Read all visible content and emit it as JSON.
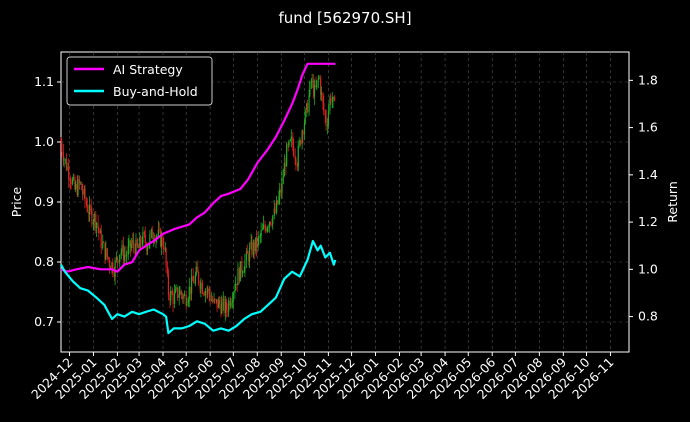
{
  "chart_data": {
    "type": "line",
    "title": "fund [562970.SH]",
    "ylabel_left": "Price",
    "ylabel_right": "Return",
    "ylim_left": [
      0.65,
      1.15
    ],
    "ylim_right": [
      0.65,
      1.92
    ],
    "yticks_left": [
      "0.7",
      "0.8",
      "0.9",
      "1.0",
      "1.1"
    ],
    "yticks_right": [
      "0.8",
      "1.0",
      "1.2",
      "1.4",
      "1.6",
      "1.8"
    ],
    "x_range": [
      "2024-11-20",
      "2026-11-25"
    ],
    "x_ticks": [
      "2024-12",
      "2025-01",
      "2025-02",
      "2025-03",
      "2025-04",
      "2025-05",
      "2025-06",
      "2025-07",
      "2025-08",
      "2025-09",
      "2025-10",
      "2025-11",
      "2025-12",
      "2026-01",
      "2026-02",
      "2026-03",
      "2026-04",
      "2026-05",
      "2026-06",
      "2026-07",
      "2026-08",
      "2026-09",
      "2026-10",
      "2026-11"
    ],
    "grid": true,
    "legend_position": "top-left",
    "background": "#000000",
    "series": [
      {
        "name": "AI Strategy",
        "axis": "right",
        "color": "#ff00ff",
        "points": [
          [
            "2024-11-20",
            1.0
          ],
          [
            "2024-11-28",
            0.99
          ],
          [
            "2024-12-10",
            1.0
          ],
          [
            "2024-12-25",
            1.01
          ],
          [
            "2025-01-10",
            1.0
          ],
          [
            "2025-01-25",
            1.0
          ],
          [
            "2025-02-01",
            0.99
          ],
          [
            "2025-02-10",
            1.02
          ],
          [
            "2025-02-20",
            1.03
          ],
          [
            "2025-03-01",
            1.08
          ],
          [
            "2025-03-10",
            1.1
          ],
          [
            "2025-03-20",
            1.12
          ],
          [
            "2025-04-01",
            1.15
          ],
          [
            "2025-04-15",
            1.17
          ],
          [
            "2025-04-25",
            1.18
          ],
          [
            "2025-05-05",
            1.19
          ],
          [
            "2025-05-15",
            1.22
          ],
          [
            "2025-05-25",
            1.24
          ],
          [
            "2025-06-05",
            1.28
          ],
          [
            "2025-06-15",
            1.31
          ],
          [
            "2025-06-25",
            1.32
          ],
          [
            "2025-07-10",
            1.34
          ],
          [
            "2025-07-20",
            1.38
          ],
          [
            "2025-08-01",
            1.45
          ],
          [
            "2025-08-15",
            1.51
          ],
          [
            "2025-08-25",
            1.56
          ],
          [
            "2025-09-05",
            1.63
          ],
          [
            "2025-09-15",
            1.7
          ],
          [
            "2025-09-22",
            1.76
          ],
          [
            "2025-09-28",
            1.82
          ],
          [
            "2025-10-05",
            1.87
          ],
          [
            "2025-10-15",
            1.87
          ],
          [
            "2025-10-30",
            1.87
          ],
          [
            "2025-11-10",
            1.87
          ]
        ]
      },
      {
        "name": "Buy-and-Hold",
        "axis": "right",
        "color": "#00ffff",
        "points": [
          [
            "2024-11-20",
            1.02
          ],
          [
            "2024-11-25",
            0.99
          ],
          [
            "2024-12-05",
            0.95
          ],
          [
            "2024-12-15",
            0.92
          ],
          [
            "2024-12-25",
            0.91
          ],
          [
            "2025-01-05",
            0.88
          ],
          [
            "2025-01-15",
            0.85
          ],
          [
            "2025-01-20",
            0.82
          ],
          [
            "2025-01-25",
            0.79
          ],
          [
            "2025-02-01",
            0.81
          ],
          [
            "2025-02-10",
            0.8
          ],
          [
            "2025-02-20",
            0.82
          ],
          [
            "2025-03-01",
            0.81
          ],
          [
            "2025-03-10",
            0.82
          ],
          [
            "2025-03-20",
            0.83
          ],
          [
            "2025-04-01",
            0.81
          ],
          [
            "2025-04-05",
            0.8
          ],
          [
            "2025-04-08",
            0.73
          ],
          [
            "2025-04-15",
            0.75
          ],
          [
            "2025-04-25",
            0.75
          ],
          [
            "2025-05-05",
            0.76
          ],
          [
            "2025-05-15",
            0.78
          ],
          [
            "2025-05-25",
            0.77
          ],
          [
            "2025-06-05",
            0.74
          ],
          [
            "2025-06-15",
            0.75
          ],
          [
            "2025-06-25",
            0.74
          ],
          [
            "2025-07-05",
            0.76
          ],
          [
            "2025-07-15",
            0.79
          ],
          [
            "2025-07-25",
            0.81
          ],
          [
            "2025-08-05",
            0.82
          ],
          [
            "2025-08-15",
            0.85
          ],
          [
            "2025-08-25",
            0.88
          ],
          [
            "2025-09-05",
            0.96
          ],
          [
            "2025-09-15",
            0.99
          ],
          [
            "2025-09-25",
            0.97
          ],
          [
            "2025-10-05",
            1.04
          ],
          [
            "2025-10-12",
            1.12
          ],
          [
            "2025-10-18",
            1.08
          ],
          [
            "2025-10-22",
            1.1
          ],
          [
            "2025-10-28",
            1.05
          ],
          [
            "2025-11-03",
            1.07
          ],
          [
            "2025-11-08",
            1.02
          ],
          [
            "2025-11-10",
            1.04
          ]
        ]
      },
      {
        "name": "",
        "axis": "left",
        "type": "candlestick-trace",
        "up_color": "#22aa22",
        "down_color": "#dd2222",
        "points": [
          [
            "2024-11-20",
            1.0
          ],
          [
            "2024-11-25",
            0.97
          ],
          [
            "2024-12-01",
            0.95
          ],
          [
            "2024-12-08",
            0.92
          ],
          [
            "2024-12-15",
            0.93
          ],
          [
            "2024-12-22",
            0.9
          ],
          [
            "2024-12-28",
            0.88
          ],
          [
            "2025-01-05",
            0.87
          ],
          [
            "2025-01-10",
            0.84
          ],
          [
            "2025-01-15",
            0.82
          ],
          [
            "2025-01-22",
            0.8
          ],
          [
            "2025-01-28",
            0.79
          ],
          [
            "2025-02-05",
            0.82
          ],
          [
            "2025-02-12",
            0.81
          ],
          [
            "2025-02-20",
            0.83
          ],
          [
            "2025-02-28",
            0.82
          ],
          [
            "2025-03-05",
            0.84
          ],
          [
            "2025-03-12",
            0.83
          ],
          [
            "2025-03-20",
            0.85
          ],
          [
            "2025-03-28",
            0.84
          ],
          [
            "2025-04-03",
            0.83
          ],
          [
            "2025-04-08",
            0.75
          ],
          [
            "2025-04-15",
            0.74
          ],
          [
            "2025-04-22",
            0.75
          ],
          [
            "2025-04-30",
            0.74
          ],
          [
            "2025-05-08",
            0.76
          ],
          [
            "2025-05-15",
            0.78
          ],
          [
            "2025-05-22",
            0.76
          ],
          [
            "2025-05-30",
            0.75
          ],
          [
            "2025-06-06",
            0.73
          ],
          [
            "2025-06-14",
            0.73
          ],
          [
            "2025-06-22",
            0.72
          ],
          [
            "2025-06-30",
            0.75
          ],
          [
            "2025-07-08",
            0.78
          ],
          [
            "2025-07-16",
            0.8
          ],
          [
            "2025-07-24",
            0.82
          ],
          [
            "2025-08-01",
            0.83
          ],
          [
            "2025-08-08",
            0.85
          ],
          [
            "2025-08-16",
            0.87
          ],
          [
            "2025-08-24",
            0.88
          ],
          [
            "2025-09-01",
            0.92
          ],
          [
            "2025-09-08",
            0.98
          ],
          [
            "2025-09-15",
            1.0
          ],
          [
            "2025-09-22",
            0.97
          ],
          [
            "2025-09-28",
            1.02
          ],
          [
            "2025-10-04",
            1.05
          ],
          [
            "2025-10-10",
            1.1
          ],
          [
            "2025-10-15",
            1.08
          ],
          [
            "2025-10-20",
            1.11
          ],
          [
            "2025-10-25",
            1.06
          ],
          [
            "2025-10-30",
            1.03
          ],
          [
            "2025-11-04",
            1.08
          ],
          [
            "2025-11-10",
            1.05
          ]
        ]
      }
    ]
  }
}
